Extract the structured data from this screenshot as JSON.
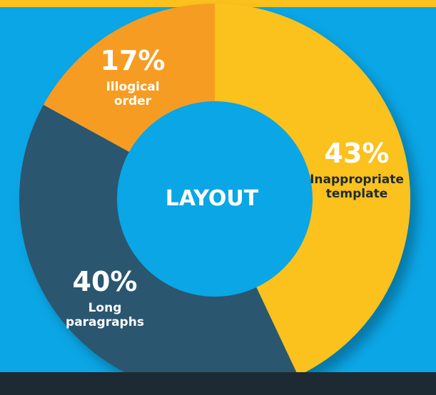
{
  "chart_data": {
    "type": "pie",
    "center_label": "LAYOUT",
    "slices": [
      {
        "percent_label": "43%",
        "label": [
          "Inappropriate",
          "template"
        ],
        "value": 43,
        "color": "#fbc11c",
        "text_color": "#ffffff",
        "label_color": "#1e2a33"
      },
      {
        "percent_label": "40%",
        "label": [
          "Long",
          "paragraphs"
        ],
        "value": 40,
        "color": "#2c5670",
        "text_color": "#ffffff",
        "label_color": "#ffffff"
      },
      {
        "percent_label": "17%",
        "label": [
          "Illogical",
          "order"
        ],
        "value": 17,
        "color": "#f79c24",
        "text_color": "#ffffff",
        "label_color": "#ffffff"
      }
    ]
  },
  "colors": {
    "background": "#0aa6e6",
    "center": "#0aa6e6",
    "top_band": "#fbc11c",
    "bottom_bar": "#1e2a33"
  }
}
